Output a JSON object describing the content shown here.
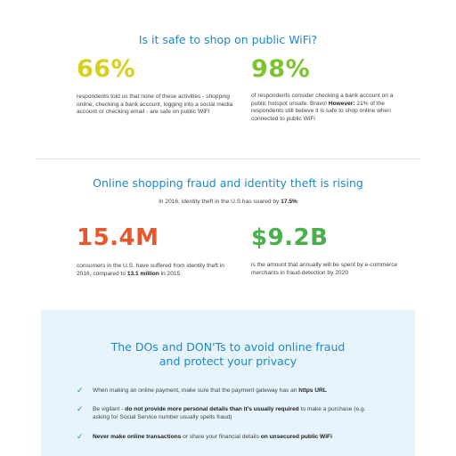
{
  "section_wifi": {
    "heading": "Is it safe to shop on public WiFi?",
    "stat1": {
      "value": "66%",
      "text": "respondents told us that none of these activities - shopping online, checking a bank account, logging into a social media account or checking email - are safe on public WiFi"
    },
    "stat2": {
      "value": "98%",
      "text": "of respondents consider checking a bank account on a public hotspot unsafe. Bravo!",
      "however_label": "However:",
      "however_text": " 21% of the respondents still believe it is safe to shop online when connected to public WiFi"
    }
  },
  "section_fraud": {
    "heading": "Online shopping fraud and identity theft is rising",
    "identity_text": "In 2016, identity theft in the U.S has soared by ",
    "identity_value": "17.5%",
    "stat1": {
      "value": "15.4M",
      "text": "consumers in the U.S. have suffered from identity theft in 2016, compared to ",
      "compare_value": "13.1 million",
      "compare_suffix": " in 2015"
    },
    "stat2": {
      "value": "$9.2B",
      "text": "is the amount that annually will be spent by e-commerce merchants in fraud-detection by 2020"
    }
  },
  "section_dos": {
    "heading_line1": "The DOs and DON'Ts to avoid online fraud",
    "heading_line2": "and protect your privacy",
    "tips": [
      {
        "pre": "When making an online payment, make sure that the payment gateway has an ",
        "bold": "https URL",
        "post": ""
      },
      {
        "pre": "Be vigilant - ",
        "bold": "do not provide more personal details than it's usually required",
        "post": " to make a purchase (e.g. asking for Social Service number usually spells fraud)"
      },
      {
        "pre": "",
        "bold": "Never make online transactions",
        "post": " or share your financial details ",
        "bold2": "on unsecured public WiFi"
      }
    ]
  },
  "colors": {
    "heading_blue": "#1e88c7",
    "stat_yellow": "#d6d021",
    "stat_green": "#7cc42d",
    "stat_orange": "#e8572b",
    "stat_dark_green": "#49b04b",
    "box_bg": "#e7f4fb"
  },
  "icons": {
    "tip_marker": "check-icon"
  }
}
